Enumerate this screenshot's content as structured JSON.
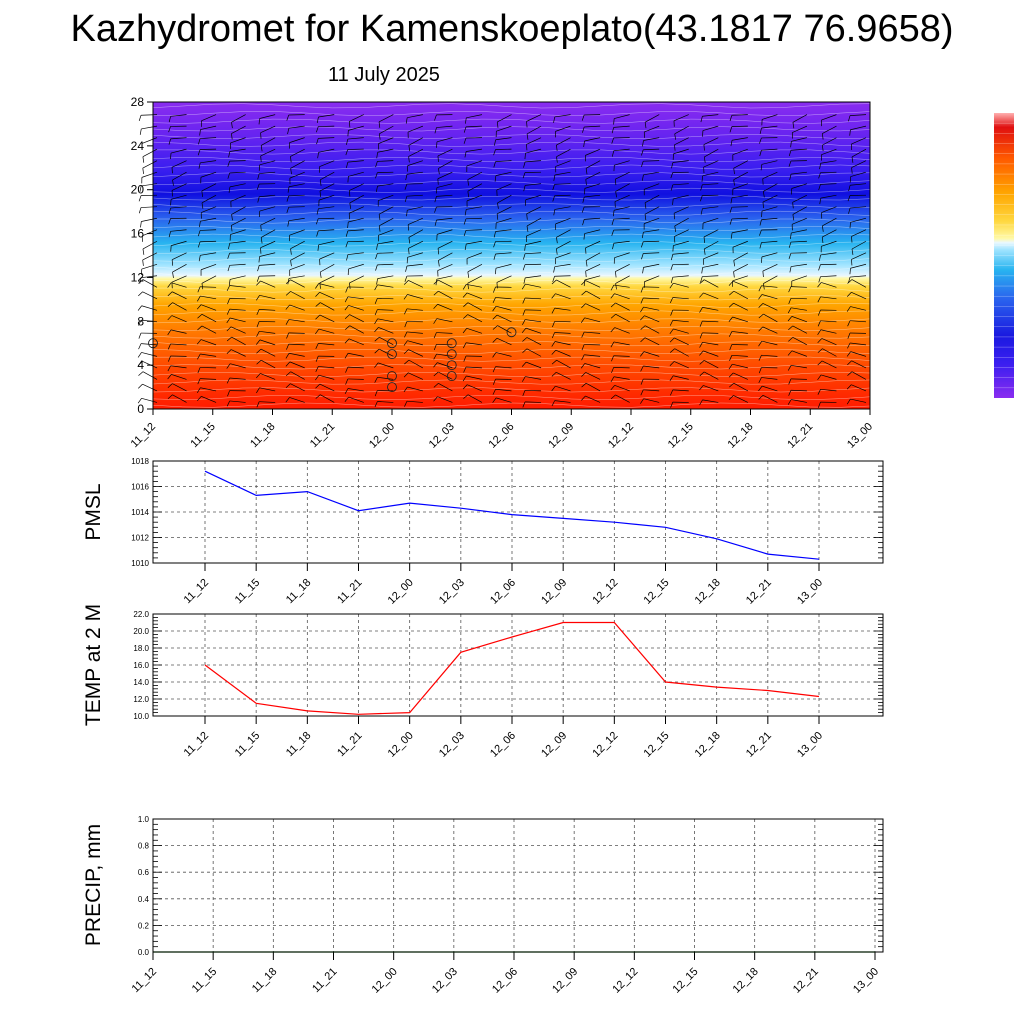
{
  "page": {
    "title": "Kazhydromet for Kamenskoeplato(43.1817 76.9658)",
    "date": "11 July 2025"
  },
  "chart_data": [
    {
      "type": "heatmap",
      "name": "vertical-cross-section",
      "x_tick_labels": [
        "11_12",
        "11_15",
        "11_18",
        "11_21",
        "12_00",
        "12_03",
        "12_06",
        "12_09",
        "12_12",
        "12_15",
        "12_18",
        "12_21",
        "13_00"
      ],
      "y_ticks": [
        0,
        4,
        8,
        12,
        16,
        20,
        24,
        28
      ],
      "ylim": [
        0,
        28
      ],
      "colormap": "rainbow (red warm at bottom, yellow near 12, cyan 12-16, blue 20, violet aloft)",
      "colorbar": true,
      "cloud_markers": [
        {
          "time": "11_12",
          "level": 6
        },
        {
          "time": "12_00",
          "level": 2
        },
        {
          "time": "12_00",
          "level": 3
        },
        {
          "time": "12_00",
          "level": 5
        },
        {
          "time": "12_00",
          "level": 6
        },
        {
          "time": "12_03",
          "level": 3
        },
        {
          "time": "12_03",
          "level": 4
        },
        {
          "time": "12_03",
          "level": 5
        },
        {
          "time": "12_03",
          "level": 6
        },
        {
          "time": "12_06",
          "level": 7
        }
      ],
      "wind_barbs": true
    },
    {
      "type": "line",
      "name": "pmsl",
      "ylabel": "PMSL",
      "x": [
        "11_12",
        "11_15",
        "11_18",
        "11_21",
        "12_00",
        "12_03",
        "12_06",
        "12_09",
        "12_12",
        "12_15",
        "12_18",
        "12_21",
        "13_00"
      ],
      "values": [
        1017.2,
        1015.3,
        1015.6,
        1014.1,
        1014.7,
        1014.3,
        1013.8,
        1013.5,
        1013.2,
        1012.8,
        1011.9,
        1010.7,
        1010.3
      ],
      "ylim": [
        1010,
        1018
      ],
      "y_ticks": [
        "1010",
        "1012",
        "1014",
        "1016",
        "1018"
      ],
      "color": "#0000ff",
      "grid": true
    },
    {
      "type": "line",
      "name": "temp-2m",
      "ylabel": "TEMP at 2 M",
      "x": [
        "11_12",
        "11_15",
        "11_18",
        "11_21",
        "12_00",
        "12_03",
        "12_06",
        "12_09",
        "12_12",
        "12_15",
        "12_18",
        "12_21",
        "13_00"
      ],
      "values": [
        16.0,
        11.5,
        10.6,
        10.2,
        10.4,
        17.5,
        19.3,
        21.0,
        21.0,
        14.0,
        13.4,
        13.0,
        12.3
      ],
      "ylim": [
        10,
        22
      ],
      "y_ticks": [
        "10.0",
        "12.0",
        "14.0",
        "16.0",
        "18.0",
        "20.0",
        "22.0"
      ],
      "color": "#ff0000",
      "grid": true
    },
    {
      "type": "line",
      "name": "precip",
      "ylabel": "PRECIP, mm",
      "x_tick_labels": [
        "11_12",
        "11_15",
        "11_18",
        "11_21",
        "12_00",
        "12_03",
        "12_06",
        "12_09",
        "12_12",
        "12_15",
        "12_18",
        "12_21",
        "13_00"
      ],
      "values": [
        0,
        0,
        0,
        0,
        0,
        0,
        0,
        0,
        0,
        0,
        0,
        0,
        0
      ],
      "ylim": [
        0,
        1
      ],
      "y_ticks": [
        "0.0",
        "0.2",
        "0.4",
        "0.6",
        "0.8",
        "1.0"
      ],
      "color": "#008000",
      "grid": true
    }
  ]
}
